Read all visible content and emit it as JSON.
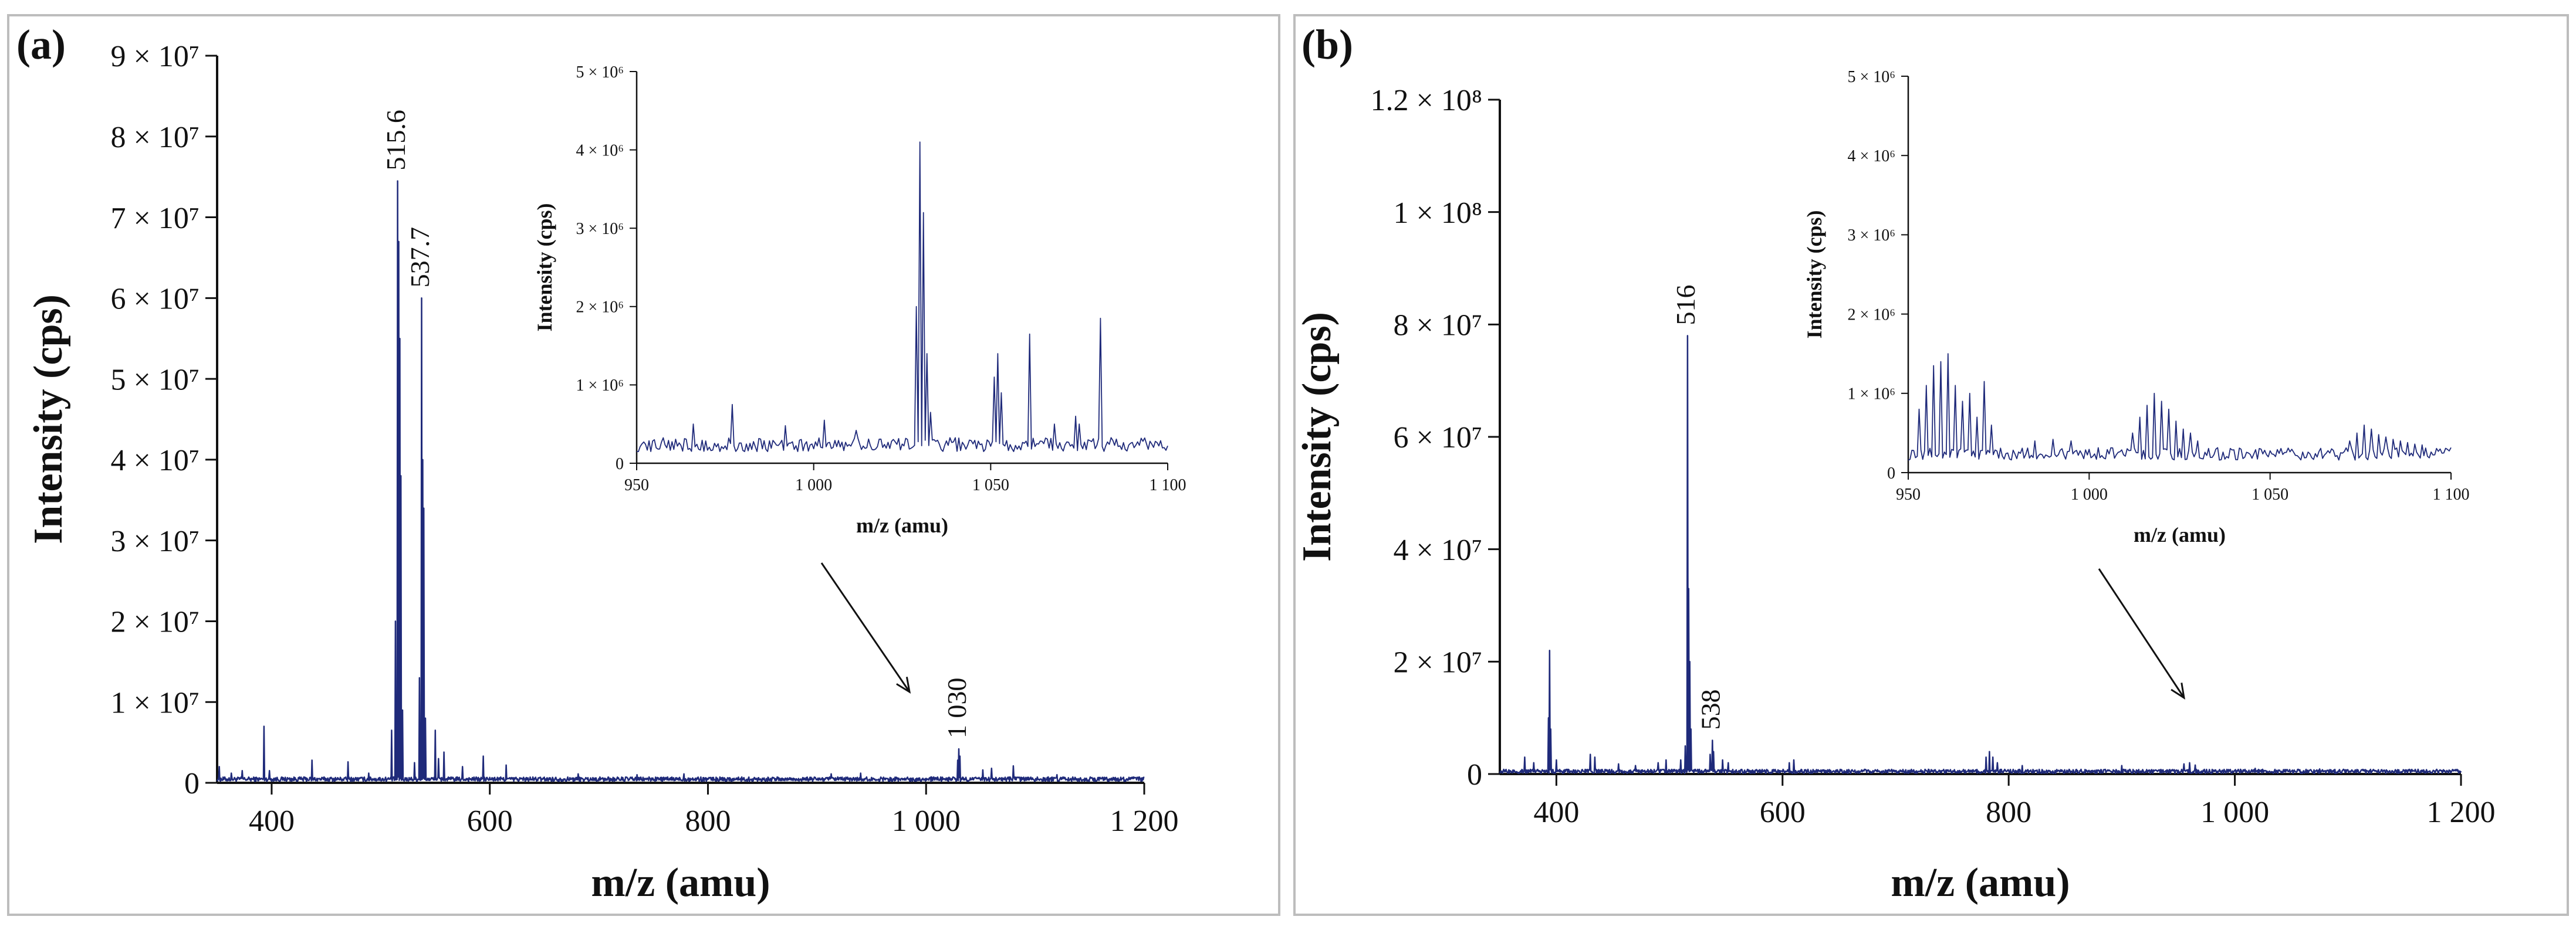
{
  "colors": {
    "trace": "#1f2a7a",
    "axis": "#111111",
    "frame": "#bdbdbd"
  },
  "chart_data": [
    {
      "panel_label": "(a)",
      "type": "line",
      "title": "",
      "xlabel": "m/z (amu)",
      "ylabel": "Intensity (cps)",
      "xlim": [
        350,
        1200
      ],
      "ylim": [
        0,
        90000000
      ],
      "xticks": [
        400,
        600,
        800,
        1000,
        1200
      ],
      "xtick_labels": [
        "400",
        "600",
        "800",
        "1 000",
        "1 200"
      ],
      "yticks": [
        0,
        10000000,
        20000000,
        30000000,
        40000000,
        50000000,
        60000000,
        70000000,
        80000000,
        90000000
      ],
      "ytick_labels": [
        "0",
        "1 × 10⁷",
        "2 × 10⁷",
        "3 × 10⁷",
        "4 × 10⁷",
        "5 × 10⁷",
        "6 × 10⁷",
        "7 × 10⁷",
        "8 × 10⁷",
        "9 × 10⁷"
      ],
      "peaks": [
        {
          "x": 352,
          "y": 2000000
        },
        {
          "x": 363,
          "y": 1200000
        },
        {
          "x": 373,
          "y": 1500000
        },
        {
          "x": 393,
          "y": 7000000
        },
        {
          "x": 398,
          "y": 1500000
        },
        {
          "x": 437,
          "y": 2800000
        },
        {
          "x": 470,
          "y": 2600000
        },
        {
          "x": 489,
          "y": 1200000
        },
        {
          "x": 510,
          "y": 6500000
        },
        {
          "x": 513.5,
          "y": 20000000
        },
        {
          "x": 515.6,
          "y": 74500000
        },
        {
          "x": 516.6,
          "y": 67000000
        },
        {
          "x": 517.6,
          "y": 55000000
        },
        {
          "x": 518.6,
          "y": 38000000
        },
        {
          "x": 520,
          "y": 9000000
        },
        {
          "x": 531,
          "y": 2500000
        },
        {
          "x": 535.5,
          "y": 13000000
        },
        {
          "x": 537.7,
          "y": 60000000
        },
        {
          "x": 538.7,
          "y": 40000000
        },
        {
          "x": 539.7,
          "y": 34000000
        },
        {
          "x": 541,
          "y": 8000000
        },
        {
          "x": 550,
          "y": 6500000
        },
        {
          "x": 553,
          "y": 3000000
        },
        {
          "x": 558,
          "y": 3800000
        },
        {
          "x": 575,
          "y": 2000000
        },
        {
          "x": 594,
          "y": 3300000
        },
        {
          "x": 615,
          "y": 2200000
        },
        {
          "x": 681,
          "y": 1100000
        },
        {
          "x": 735,
          "y": 1000000
        },
        {
          "x": 778,
          "y": 1100000
        },
        {
          "x": 913,
          "y": 1100000
        },
        {
          "x": 940,
          "y": 1200000
        },
        {
          "x": 1029,
          "y": 2800000
        },
        {
          "x": 1030,
          "y": 4200000
        },
        {
          "x": 1031,
          "y": 3300000
        },
        {
          "x": 1052,
          "y": 1600000
        },
        {
          "x": 1060,
          "y": 1800000
        },
        {
          "x": 1080,
          "y": 2100000
        },
        {
          "x": 1120,
          "y": 1000000
        }
      ],
      "baseline": 400000,
      "peak_labels": [
        {
          "x": 515.6,
          "y": 74500000,
          "text": "515.6"
        },
        {
          "x": 537.7,
          "y": 60000000,
          "text": "537.7"
        },
        {
          "x": 1030,
          "y": 4200000,
          "text": "1 030"
        }
      ],
      "inset": {
        "type": "line",
        "xlabel": "m/z (amu)",
        "ylabel": "Intensity (cps)",
        "xlim": [
          950,
          1100
        ],
        "ylim": [
          0,
          5000000
        ],
        "xticks": [
          950,
          1000,
          1050,
          1100
        ],
        "xtick_labels": [
          "950",
          "1 000",
          "1 050",
          "1 100"
        ],
        "yticks": [
          0,
          1000000,
          2000000,
          3000000,
          4000000,
          5000000
        ],
        "ytick_labels": [
          "0",
          "1 × 10⁶",
          "2 × 10⁶",
          "3 × 10⁶",
          "4 × 10⁶",
          "5 × 10⁶"
        ],
        "baseline": 220000,
        "noise": 90000,
        "peaks": [
          {
            "x": 966,
            "y": 500000
          },
          {
            "x": 977,
            "y": 750000
          },
          {
            "x": 992,
            "y": 480000
          },
          {
            "x": 1003,
            "y": 550000
          },
          {
            "x": 1012,
            "y": 420000
          },
          {
            "x": 1029,
            "y": 2000000
          },
          {
            "x": 1030,
            "y": 4100000
          },
          {
            "x": 1031,
            "y": 3200000
          },
          {
            "x": 1032,
            "y": 1400000
          },
          {
            "x": 1033,
            "y": 650000
          },
          {
            "x": 1051,
            "y": 1100000
          },
          {
            "x": 1052,
            "y": 1400000
          },
          {
            "x": 1053,
            "y": 900000
          },
          {
            "x": 1061,
            "y": 1650000
          },
          {
            "x": 1068,
            "y": 500000
          },
          {
            "x": 1074,
            "y": 600000
          },
          {
            "x": 1075,
            "y": 500000
          },
          {
            "x": 1081,
            "y": 1850000
          }
        ]
      }
    },
    {
      "panel_label": "(b)",
      "type": "line",
      "title": "",
      "xlabel": "m/z (amu)",
      "ylabel": "Intensity (cps)",
      "xlim": [
        350,
        1200
      ],
      "ylim": [
        0,
        120000000
      ],
      "xticks": [
        400,
        600,
        800,
        1000,
        1200
      ],
      "xtick_labels": [
        "400",
        "600",
        "800",
        "1 000",
        "1 200"
      ],
      "yticks": [
        0,
        20000000,
        40000000,
        60000000,
        80000000,
        100000000,
        120000000
      ],
      "ytick_labels": [
        "0",
        "2 × 10⁷",
        "4 × 10⁷",
        "6 × 10⁷",
        "8 × 10⁷",
        "1 × 10⁸",
        "1.2 × 10⁸"
      ],
      "peaks": [
        {
          "x": 372,
          "y": 3000000
        },
        {
          "x": 380,
          "y": 2000000
        },
        {
          "x": 393,
          "y": 10000000
        },
        {
          "x": 394,
          "y": 22000000
        },
        {
          "x": 395,
          "y": 8000000
        },
        {
          "x": 400,
          "y": 2500000
        },
        {
          "x": 430,
          "y": 3500000
        },
        {
          "x": 434,
          "y": 3000000
        },
        {
          "x": 455,
          "y": 1800000
        },
        {
          "x": 470,
          "y": 1500000
        },
        {
          "x": 490,
          "y": 2000000
        },
        {
          "x": 497,
          "y": 2500000
        },
        {
          "x": 510,
          "y": 2500000
        },
        {
          "x": 514,
          "y": 5000000
        },
        {
          "x": 516,
          "y": 78000000
        },
        {
          "x": 517,
          "y": 33000000
        },
        {
          "x": 518,
          "y": 20000000
        },
        {
          "x": 519,
          "y": 8000000
        },
        {
          "x": 536,
          "y": 3500000
        },
        {
          "x": 538,
          "y": 6000000
        },
        {
          "x": 539,
          "y": 4000000
        },
        {
          "x": 547,
          "y": 2500000
        },
        {
          "x": 552,
          "y": 2000000
        },
        {
          "x": 606,
          "y": 2000000
        },
        {
          "x": 610,
          "y": 2500000
        },
        {
          "x": 780,
          "y": 3000000
        },
        {
          "x": 783,
          "y": 4000000
        },
        {
          "x": 786,
          "y": 3000000
        },
        {
          "x": 790,
          "y": 2000000
        },
        {
          "x": 812,
          "y": 1500000
        },
        {
          "x": 900,
          "y": 1500000
        },
        {
          "x": 955,
          "y": 1800000
        },
        {
          "x": 960,
          "y": 2000000
        },
        {
          "x": 965,
          "y": 1600000
        },
        {
          "x": 1018,
          "y": 1000000
        },
        {
          "x": 1075,
          "y": 900000
        }
      ],
      "baseline": 400000,
      "peak_labels": [
        {
          "x": 516,
          "y": 78000000,
          "text": "516"
        },
        {
          "x": 538,
          "y": 6000000,
          "text": "538"
        }
      ],
      "inset": {
        "type": "line",
        "xlabel": "m/z (amu)",
        "ylabel": "Intensity (cps)",
        "xlim": [
          950,
          1100
        ],
        "ylim": [
          0,
          5000000
        ],
        "xticks": [
          950,
          1000,
          1050,
          1100
        ],
        "xtick_labels": [
          "950",
          "1 000",
          "1 050",
          "1 100"
        ],
        "yticks": [
          0,
          1000000,
          2000000,
          3000000,
          4000000,
          5000000
        ],
        "ytick_labels": [
          "0",
          "1 × 10⁶",
          "2 × 10⁶",
          "3 × 10⁶",
          "4 × 10⁶",
          "5 × 10⁶"
        ],
        "baseline": 220000,
        "noise": 80000,
        "peaks": [
          {
            "x": 953,
            "y": 800000
          },
          {
            "x": 955,
            "y": 1100000
          },
          {
            "x": 957,
            "y": 1350000
          },
          {
            "x": 959,
            "y": 1400000
          },
          {
            "x": 961,
            "y": 1500000
          },
          {
            "x": 963,
            "y": 1100000
          },
          {
            "x": 965,
            "y": 900000
          },
          {
            "x": 967,
            "y": 1000000
          },
          {
            "x": 969,
            "y": 700000
          },
          {
            "x": 971,
            "y": 1150000
          },
          {
            "x": 973,
            "y": 600000
          },
          {
            "x": 985,
            "y": 400000
          },
          {
            "x": 990,
            "y": 420000
          },
          {
            "x": 995,
            "y": 400000
          },
          {
            "x": 1012,
            "y": 500000
          },
          {
            "x": 1014,
            "y": 700000
          },
          {
            "x": 1016,
            "y": 850000
          },
          {
            "x": 1018,
            "y": 1000000
          },
          {
            "x": 1020,
            "y": 900000
          },
          {
            "x": 1022,
            "y": 800000
          },
          {
            "x": 1024,
            "y": 650000
          },
          {
            "x": 1026,
            "y": 550000
          },
          {
            "x": 1028,
            "y": 500000
          },
          {
            "x": 1030,
            "y": 400000
          },
          {
            "x": 1072,
            "y": 400000
          },
          {
            "x": 1074,
            "y": 500000
          },
          {
            "x": 1076,
            "y": 600000
          },
          {
            "x": 1078,
            "y": 550000
          },
          {
            "x": 1080,
            "y": 480000
          },
          {
            "x": 1082,
            "y": 450000
          },
          {
            "x": 1084,
            "y": 420000
          },
          {
            "x": 1086,
            "y": 400000
          },
          {
            "x": 1088,
            "y": 380000
          },
          {
            "x": 1090,
            "y": 360000
          },
          {
            "x": 1092,
            "y": 350000
          }
        ]
      }
    }
  ]
}
